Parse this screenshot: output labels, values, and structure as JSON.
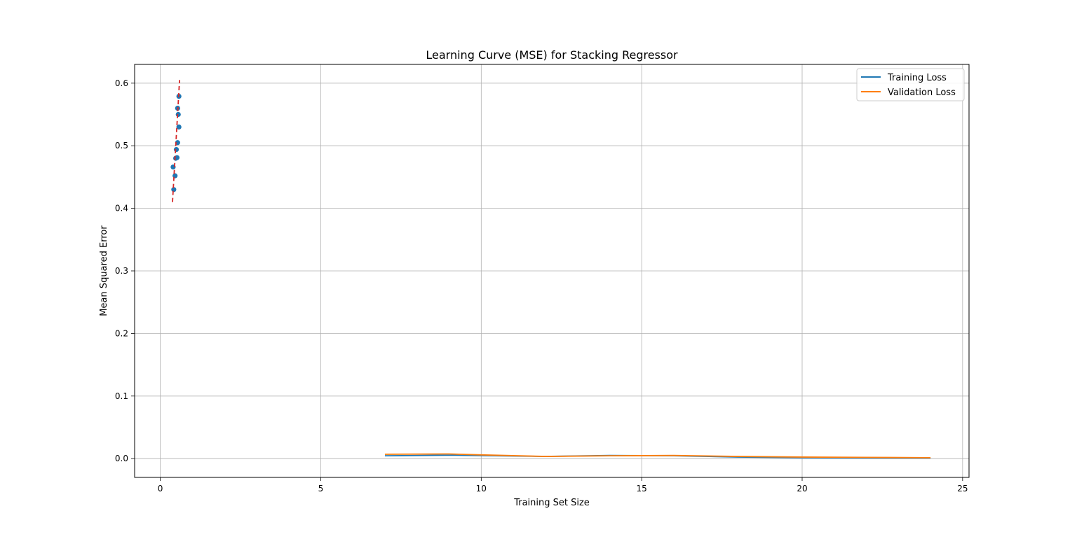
{
  "chart_data": {
    "type": "line",
    "title": "Learning Curve (MSE) for Stacking Regressor",
    "xlabel": "Training Set Size",
    "ylabel": "Mean Squared Error",
    "xlim": [
      -0.8,
      25.2
    ],
    "ylim": [
      -0.03,
      0.63
    ],
    "xticks": [
      0,
      5,
      10,
      15,
      20,
      25
    ],
    "xtick_labels": [
      "0",
      "5",
      "10",
      "15",
      "20",
      "25"
    ],
    "yticks": [
      0.0,
      0.1,
      0.2,
      0.3,
      0.4,
      0.5,
      0.6
    ],
    "ytick_labels": [
      "0.0",
      "0.1",
      "0.2",
      "0.3",
      "0.4",
      "0.5",
      "0.6"
    ],
    "grid": true,
    "legend_position": "top-right",
    "series": [
      {
        "name": "Training Loss",
        "kind": "line",
        "color": "#1f77b4",
        "x": [
          7,
          9,
          10,
          12,
          14,
          16,
          18,
          20,
          22,
          24
        ],
        "y": [
          0.0045,
          0.0055,
          0.0048,
          0.0035,
          0.005,
          0.0045,
          0.0025,
          0.0015,
          0.0012,
          0.001
        ]
      },
      {
        "name": "Validation Loss",
        "kind": "line",
        "color": "#ff7f0e",
        "x": [
          7,
          9,
          10,
          12,
          14,
          16,
          18,
          20,
          22,
          24
        ],
        "y": [
          0.007,
          0.0075,
          0.006,
          0.0035,
          0.0045,
          0.005,
          0.0035,
          0.0025,
          0.002,
          0.0015
        ]
      },
      {
        "kind": "scatter",
        "color": "#1f77b4",
        "x": [
          0.42,
          0.46,
          0.4,
          0.48,
          0.52,
          0.5,
          0.54,
          0.58,
          0.56,
          0.54,
          0.58
        ],
        "y": [
          0.43,
          0.452,
          0.466,
          0.48,
          0.481,
          0.494,
          0.505,
          0.53,
          0.55,
          0.56,
          0.579
        ]
      },
      {
        "kind": "dashed-line",
        "color": "#d62728",
        "x": [
          0.38,
          0.6
        ],
        "y": [
          0.41,
          0.605
        ]
      }
    ]
  }
}
